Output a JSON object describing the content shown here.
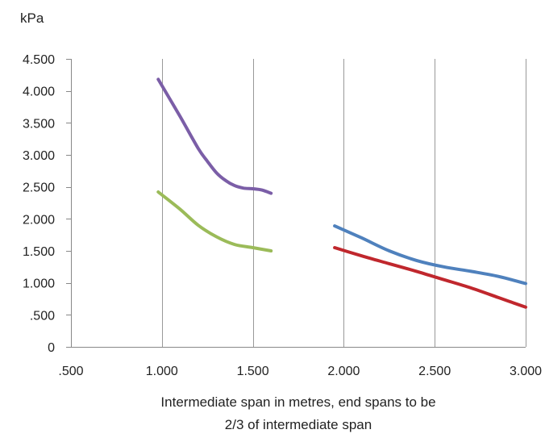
{
  "chart_data": {
    "type": "line",
    "ylabel": "kPa",
    "xlabel_lines": [
      "Intermediate span in metres, end spans to be",
      "2/3 of intermediate span"
    ],
    "xlim": [
      0.5,
      3.0
    ],
    "ylim": [
      0,
      4.5
    ],
    "x_ticks": [
      {
        "value": 0.5,
        "label": ".500"
      },
      {
        "value": 1.0,
        "label": "1.000"
      },
      {
        "value": 1.5,
        "label": "1.500"
      },
      {
        "value": 2.0,
        "label": "2.000"
      },
      {
        "value": 2.5,
        "label": "2.500"
      },
      {
        "value": 3.0,
        "label": "3.000"
      }
    ],
    "y_ticks": [
      {
        "value": 0,
        "label": "0"
      },
      {
        "value": 0.5,
        "label": ".500"
      },
      {
        "value": 1.0,
        "label": "1.000"
      },
      {
        "value": 1.5,
        "label": "1.500"
      },
      {
        "value": 2.0,
        "label": "2.000"
      },
      {
        "value": 2.5,
        "label": "2.500"
      },
      {
        "value": 3.0,
        "label": "3.000"
      },
      {
        "value": 3.5,
        "label": "3.500"
      },
      {
        "value": 4.0,
        "label": "4.000"
      },
      {
        "value": 4.5,
        "label": "4.500"
      }
    ],
    "grid": {
      "vertical": true,
      "horizontal": false
    },
    "series": [
      {
        "color": "#7b5ea7",
        "x": [
          0.98,
          1.1,
          1.2,
          1.25,
          1.3,
          1.35,
          1.4,
          1.45,
          1.5,
          1.55,
          1.6
        ],
        "y": [
          4.18,
          3.6,
          3.1,
          2.9,
          2.72,
          2.6,
          2.52,
          2.48,
          2.47,
          2.45,
          2.4
        ]
      },
      {
        "color": "#9bbb59",
        "x": [
          0.98,
          1.1,
          1.2,
          1.3,
          1.4,
          1.5,
          1.6
        ],
        "y": [
          2.42,
          2.15,
          1.9,
          1.72,
          1.6,
          1.55,
          1.5
        ]
      },
      {
        "color": "#4f81bd",
        "x": [
          1.95,
          2.1,
          2.25,
          2.4,
          2.55,
          2.7,
          2.85,
          3.0
        ],
        "y": [
          1.89,
          1.7,
          1.5,
          1.35,
          1.25,
          1.18,
          1.1,
          0.99
        ]
      },
      {
        "color": "#c0272d",
        "x": [
          1.95,
          2.1,
          2.25,
          2.4,
          2.55,
          2.7,
          2.85,
          3.0
        ],
        "y": [
          1.55,
          1.42,
          1.3,
          1.18,
          1.05,
          0.92,
          0.77,
          0.62
        ]
      }
    ]
  }
}
